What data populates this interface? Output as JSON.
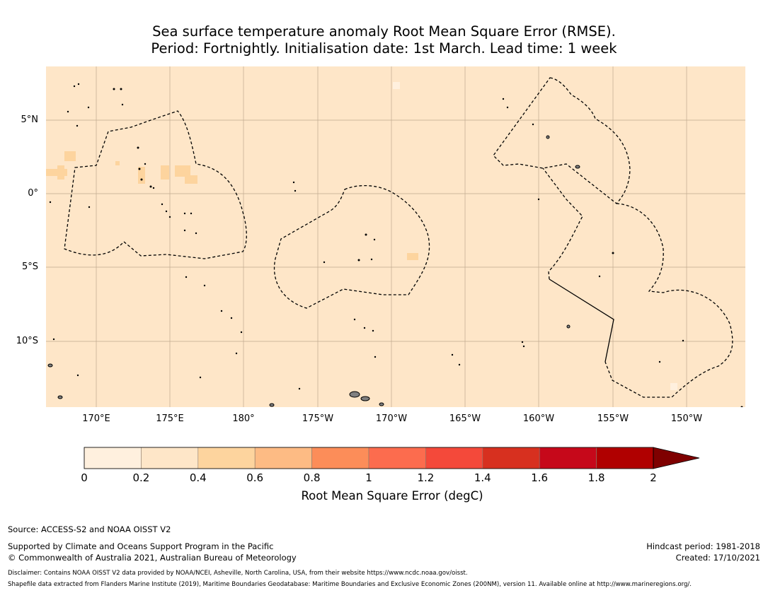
{
  "title": {
    "line1": "Sea surface temperature anomaly Root Mean Square Error (RMSE).",
    "line2": "Period: Fortnightly. Initialisation date: 1st March. Lead time: 1 week"
  },
  "map": {
    "y_labels": [
      "5°N",
      "0°",
      "5°S",
      "10°S"
    ],
    "x_labels": [
      "170°E",
      "175°E",
      "180°",
      "175°W",
      "170°W",
      "165°W",
      "160°W",
      "155°W",
      "150°W"
    ],
    "colors": {
      "ocean": "#fee6c8",
      "land": "#808080",
      "patch": "#fdd49e"
    }
  },
  "colorbar": {
    "ticks": [
      "0",
      "0.2",
      "0.4",
      "0.6",
      "0.8",
      "1",
      "1.2",
      "1.4",
      "1.6",
      "1.8",
      "2"
    ],
    "colors": [
      "#fff0de",
      "#fee6c8",
      "#fdd49e",
      "#fdbb84",
      "#fc8d59",
      "#fc6c4e",
      "#f4493a",
      "#d7301f",
      "#c6081a",
      "#b00000"
    ],
    "extend_color": "#7f0000",
    "title": "Root Mean Square Error (degC)"
  },
  "footer": {
    "source": "Source: ACCESS-S2 and NOAA OISST V2",
    "support": "Supported by Climate and Oceans Support Program in the Pacific",
    "copyright": "© Commonwealth of Australia 2021, Australian Bureau of Meteorology",
    "hindcast": "Hindcast period: 1981-2018",
    "created": "Created: 17/10/2021",
    "disclaimer": "Disclaimer: Contains NOAA OISST V2 data provided by NOAA/NCEI, Asheville, North Carolina, USA, from their website https://www.ncdc.noaa.gov/oisst.",
    "shapefile": "Shapefile data extracted from Flanders Marine Institute (2019), Maritime Boundaries Geodatabase: Maritime Boundaries and Exclusive Economic Zones (200NM), version 11. Available online at http://www.marineregions.org/."
  }
}
